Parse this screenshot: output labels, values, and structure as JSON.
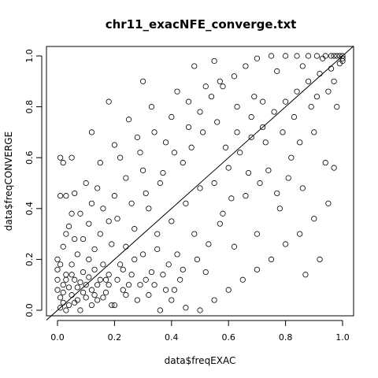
{
  "chart_data": {
    "type": "scatter",
    "title": "chr11_exacNFE_converge.txt",
    "xlabel": "data$freqEXAC",
    "ylabel": "data$freqCONVERGE",
    "xlim": [
      0,
      1
    ],
    "ylim": [
      0,
      1
    ],
    "x_ticks": [
      "0.0",
      "0.2",
      "0.4",
      "0.6",
      "0.8",
      "1.0"
    ],
    "y_ticks": [
      "0.0",
      "0.2",
      "0.4",
      "0.6",
      "0.8",
      "1.0"
    ],
    "reference_line": {
      "type": "identity",
      "slope": 1,
      "intercept": 0
    },
    "grid": false,
    "marker": "open circle",
    "color": "#000000",
    "points": [
      [
        0.01,
        0.01
      ],
      [
        0.02,
        0.03
      ],
      [
        0.03,
        0.0
      ],
      [
        0.01,
        0.05
      ],
      [
        0.04,
        0.02
      ],
      [
        0.05,
        0.06
      ],
      [
        0.02,
        0.1
      ],
      [
        0.06,
        0.03
      ],
      [
        0.08,
        0.0
      ],
      [
        0.03,
        0.14
      ],
      [
        0.1,
        0.05
      ],
      [
        0.07,
        0.09
      ],
      [
        0.0,
        0.2
      ],
      [
        0.12,
        0.02
      ],
      [
        0.05,
        0.18
      ],
      [
        0.14,
        0.1
      ],
      [
        0.09,
        0.15
      ],
      [
        0.02,
        0.25
      ],
      [
        0.16,
        0.05
      ],
      [
        0.11,
        0.2
      ],
      [
        0.18,
        0.14
      ],
      [
        0.06,
        0.28
      ],
      [
        0.2,
        0.02
      ],
      [
        0.13,
        0.24
      ],
      [
        0.22,
        0.18
      ],
      [
        0.04,
        0.33
      ],
      [
        0.15,
        0.3
      ],
      [
        0.25,
        0.1
      ],
      [
        0.08,
        0.38
      ],
      [
        0.24,
        0.25
      ],
      [
        0.28,
        0.04
      ],
      [
        0.18,
        0.35
      ],
      [
        0.3,
        0.22
      ],
      [
        0.01,
        0.45
      ],
      [
        0.03,
        0.45
      ],
      [
        0.12,
        0.42
      ],
      [
        0.27,
        0.32
      ],
      [
        0.33,
        0.15
      ],
      [
        0.2,
        0.45
      ],
      [
        0.35,
        0.3
      ],
      [
        0.1,
        0.5
      ],
      [
        0.32,
        0.4
      ],
      [
        0.38,
        0.08
      ],
      [
        0.24,
        0.52
      ],
      [
        0.4,
        0.35
      ],
      [
        0.15,
        0.58
      ],
      [
        0.42,
        0.22
      ],
      [
        0.3,
        0.55
      ],
      [
        0.45,
        0.42
      ],
      [
        0.05,
        0.6
      ],
      [
        0.36,
        0.5
      ],
      [
        0.48,
        0.3
      ],
      [
        0.2,
        0.65
      ],
      [
        0.5,
        0.48
      ],
      [
        0.28,
        0.68
      ],
      [
        0.44,
        0.58
      ],
      [
        0.52,
        0.15
      ],
      [
        0.12,
        0.7
      ],
      [
        0.55,
        0.5
      ],
      [
        0.38,
        0.66
      ],
      [
        0.58,
        0.38
      ],
      [
        0.25,
        0.75
      ],
      [
        0.6,
        0.56
      ],
      [
        0.46,
        0.72
      ],
      [
        0.62,
        0.25
      ],
      [
        0.33,
        0.8
      ],
      [
        0.64,
        0.62
      ],
      [
        0.5,
        0.78
      ],
      [
        0.66,
        0.45
      ],
      [
        0.18,
        0.82
      ],
      [
        0.68,
        0.68
      ],
      [
        0.54,
        0.84
      ],
      [
        0.7,
        0.3
      ],
      [
        0.42,
        0.86
      ],
      [
        0.72,
        0.72
      ],
      [
        0.58,
        0.88
      ],
      [
        0.74,
        0.55
      ],
      [
        0.3,
        0.9
      ],
      [
        0.76,
        0.78
      ],
      [
        0.62,
        0.92
      ],
      [
        0.78,
        0.4
      ],
      [
        0.48,
        0.96
      ],
      [
        0.8,
        0.82
      ],
      [
        0.66,
        0.96
      ],
      [
        0.82,
        0.6
      ],
      [
        0.55,
        0.98
      ],
      [
        0.84,
        0.86
      ],
      [
        0.7,
        0.99
      ],
      [
        0.86,
        0.48
      ],
      [
        0.75,
        1.0
      ],
      [
        0.88,
        0.9
      ],
      [
        0.8,
        1.0
      ],
      [
        0.9,
        0.7
      ],
      [
        0.84,
        1.0
      ],
      [
        0.92,
        0.93
      ],
      [
        0.88,
        1.0
      ],
      [
        0.94,
        0.58
      ],
      [
        0.91,
        1.0
      ],
      [
        0.96,
        0.95
      ],
      [
        0.94,
        1.0
      ],
      [
        0.98,
        0.8
      ],
      [
        0.97,
        1.0
      ],
      [
        0.99,
        0.97
      ],
      [
        1.0,
        1.0
      ],
      [
        0.99,
        1.0
      ],
      [
        0.98,
        1.0
      ],
      [
        0.96,
        1.0
      ],
      [
        1.0,
        0.99
      ],
      [
        1.0,
        0.98
      ],
      [
        0.93,
        0.99
      ],
      [
        0.86,
        0.96
      ],
      [
        0.77,
        0.94
      ],
      [
        0.4,
        0.04
      ],
      [
        0.45,
        0.01
      ],
      [
        0.5,
        0.0
      ],
      [
        0.36,
        0.0
      ],
      [
        0.55,
        0.04
      ],
      [
        0.6,
        0.08
      ],
      [
        0.65,
        0.12
      ],
      [
        0.7,
        0.16
      ],
      [
        0.75,
        0.2
      ],
      [
        0.8,
        0.26
      ],
      [
        0.85,
        0.3
      ],
      [
        0.9,
        0.36
      ],
      [
        0.95,
        0.42
      ],
      [
        0.87,
        0.14
      ],
      [
        0.92,
        0.2
      ],
      [
        0.97,
        0.56
      ],
      [
        0.01,
        0.6
      ],
      [
        0.02,
        0.58
      ],
      [
        0.06,
        0.46
      ],
      [
        0.14,
        0.48
      ],
      [
        0.22,
        0.6
      ],
      [
        0.29,
        0.62
      ],
      [
        0.34,
        0.7
      ],
      [
        0.4,
        0.76
      ],
      [
        0.46,
        0.82
      ],
      [
        0.52,
        0.88
      ],
      [
        0.57,
        0.9
      ],
      [
        0.63,
        0.8
      ],
      [
        0.69,
        0.84
      ],
      [
        0.73,
        0.66
      ],
      [
        0.79,
        0.7
      ],
      [
        0.83,
        0.76
      ],
      [
        0.89,
        0.8
      ],
      [
        0.95,
        0.86
      ],
      [
        0.97,
        0.9
      ],
      [
        0.91,
        0.84
      ],
      [
        0.85,
        0.66
      ],
      [
        0.81,
        0.52
      ],
      [
        0.77,
        0.46
      ],
      [
        0.71,
        0.5
      ],
      [
        0.67,
        0.54
      ],
      [
        0.61,
        0.44
      ],
      [
        0.57,
        0.34
      ],
      [
        0.53,
        0.26
      ],
      [
        0.49,
        0.2
      ],
      [
        0.43,
        0.12
      ],
      [
        0.39,
        0.18
      ],
      [
        0.35,
        0.24
      ],
      [
        0.31,
        0.12
      ],
      [
        0.27,
        0.2
      ],
      [
        0.23,
        0.08
      ],
      [
        0.19,
        0.26
      ],
      [
        0.17,
        0.12
      ],
      [
        0.13,
        0.06
      ],
      [
        0.11,
        0.34
      ],
      [
        0.07,
        0.22
      ],
      [
        0.03,
        0.3
      ],
      [
        0.05,
        0.38
      ],
      [
        0.09,
        0.28
      ],
      [
        0.16,
        0.4
      ],
      [
        0.21,
        0.36
      ],
      [
        0.26,
        0.42
      ],
      [
        0.31,
        0.46
      ],
      [
        0.37,
        0.54
      ],
      [
        0.41,
        0.62
      ],
      [
        0.47,
        0.64
      ],
      [
        0.51,
        0.7
      ],
      [
        0.56,
        0.74
      ],
      [
        0.59,
        0.64
      ],
      [
        0.63,
        0.7
      ],
      [
        0.68,
        0.76
      ],
      [
        0.72,
        0.82
      ],
      [
        0.0,
        0.08
      ],
      [
        0.0,
        0.12
      ],
      [
        0.0,
        0.16
      ],
      [
        0.01,
        0.18
      ],
      [
        0.02,
        0.07
      ],
      [
        0.03,
        0.12
      ],
      [
        0.04,
        0.09
      ],
      [
        0.05,
        0.14
      ],
      [
        0.06,
        0.12
      ],
      [
        0.07,
        0.04
      ],
      [
        0.08,
        0.11
      ],
      [
        0.09,
        0.07
      ],
      [
        0.1,
        0.1
      ],
      [
        0.11,
        0.13
      ],
      [
        0.12,
        0.08
      ],
      [
        0.13,
        0.16
      ],
      [
        0.14,
        0.04
      ],
      [
        0.15,
        0.12
      ],
      [
        0.16,
        0.18
      ],
      [
        0.17,
        0.07
      ],
      [
        0.18,
        0.1
      ],
      [
        0.19,
        0.02
      ],
      [
        0.21,
        0.12
      ],
      [
        0.23,
        0.16
      ],
      [
        0.24,
        0.06
      ],
      [
        0.26,
        0.14
      ],
      [
        0.29,
        0.1
      ],
      [
        0.32,
        0.06
      ],
      [
        0.34,
        0.1
      ],
      [
        0.37,
        0.14
      ],
      [
        0.41,
        0.08
      ],
      [
        0.44,
        0.16
      ]
    ]
  }
}
